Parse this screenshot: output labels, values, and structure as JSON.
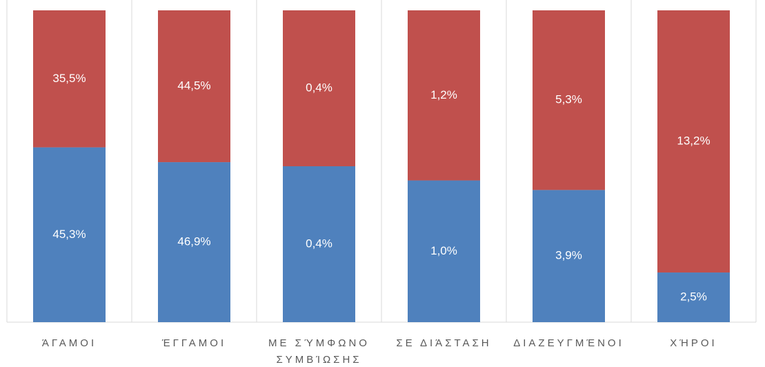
{
  "chart_data": {
    "type": "bar",
    "stacking": "percent",
    "categories": [
      "ΆΓΑΜΟΙ",
      "ΈΓΓΑΜΟΙ",
      "ΜΕ ΣΎΜΦΩΝΟ ΣΥΜΒΊΩΣΗΣ",
      "ΣΕ ΔΙΆΣΤΑΣΗ",
      "ΔΙΑΖΕΥΓΜΈΝΟΙ",
      "ΧΉΡΟΙ"
    ],
    "series": [
      {
        "color": "#4f81bd",
        "values": [
          45.3,
          46.9,
          0.4,
          1.0,
          3.9,
          2.5
        ],
        "value_labels": [
          "45,3%",
          "46,9%",
          "0,4%",
          "1,0%",
          "3,9%",
          "2,5%"
        ]
      },
      {
        "color": "#c0504d",
        "values": [
          35.5,
          44.5,
          0.4,
          1.2,
          5.3,
          13.2
        ],
        "value_labels": [
          "35,5%",
          "44,5%",
          "0,4%",
          "1,2%",
          "5,3%",
          "13,2%"
        ]
      }
    ]
  }
}
